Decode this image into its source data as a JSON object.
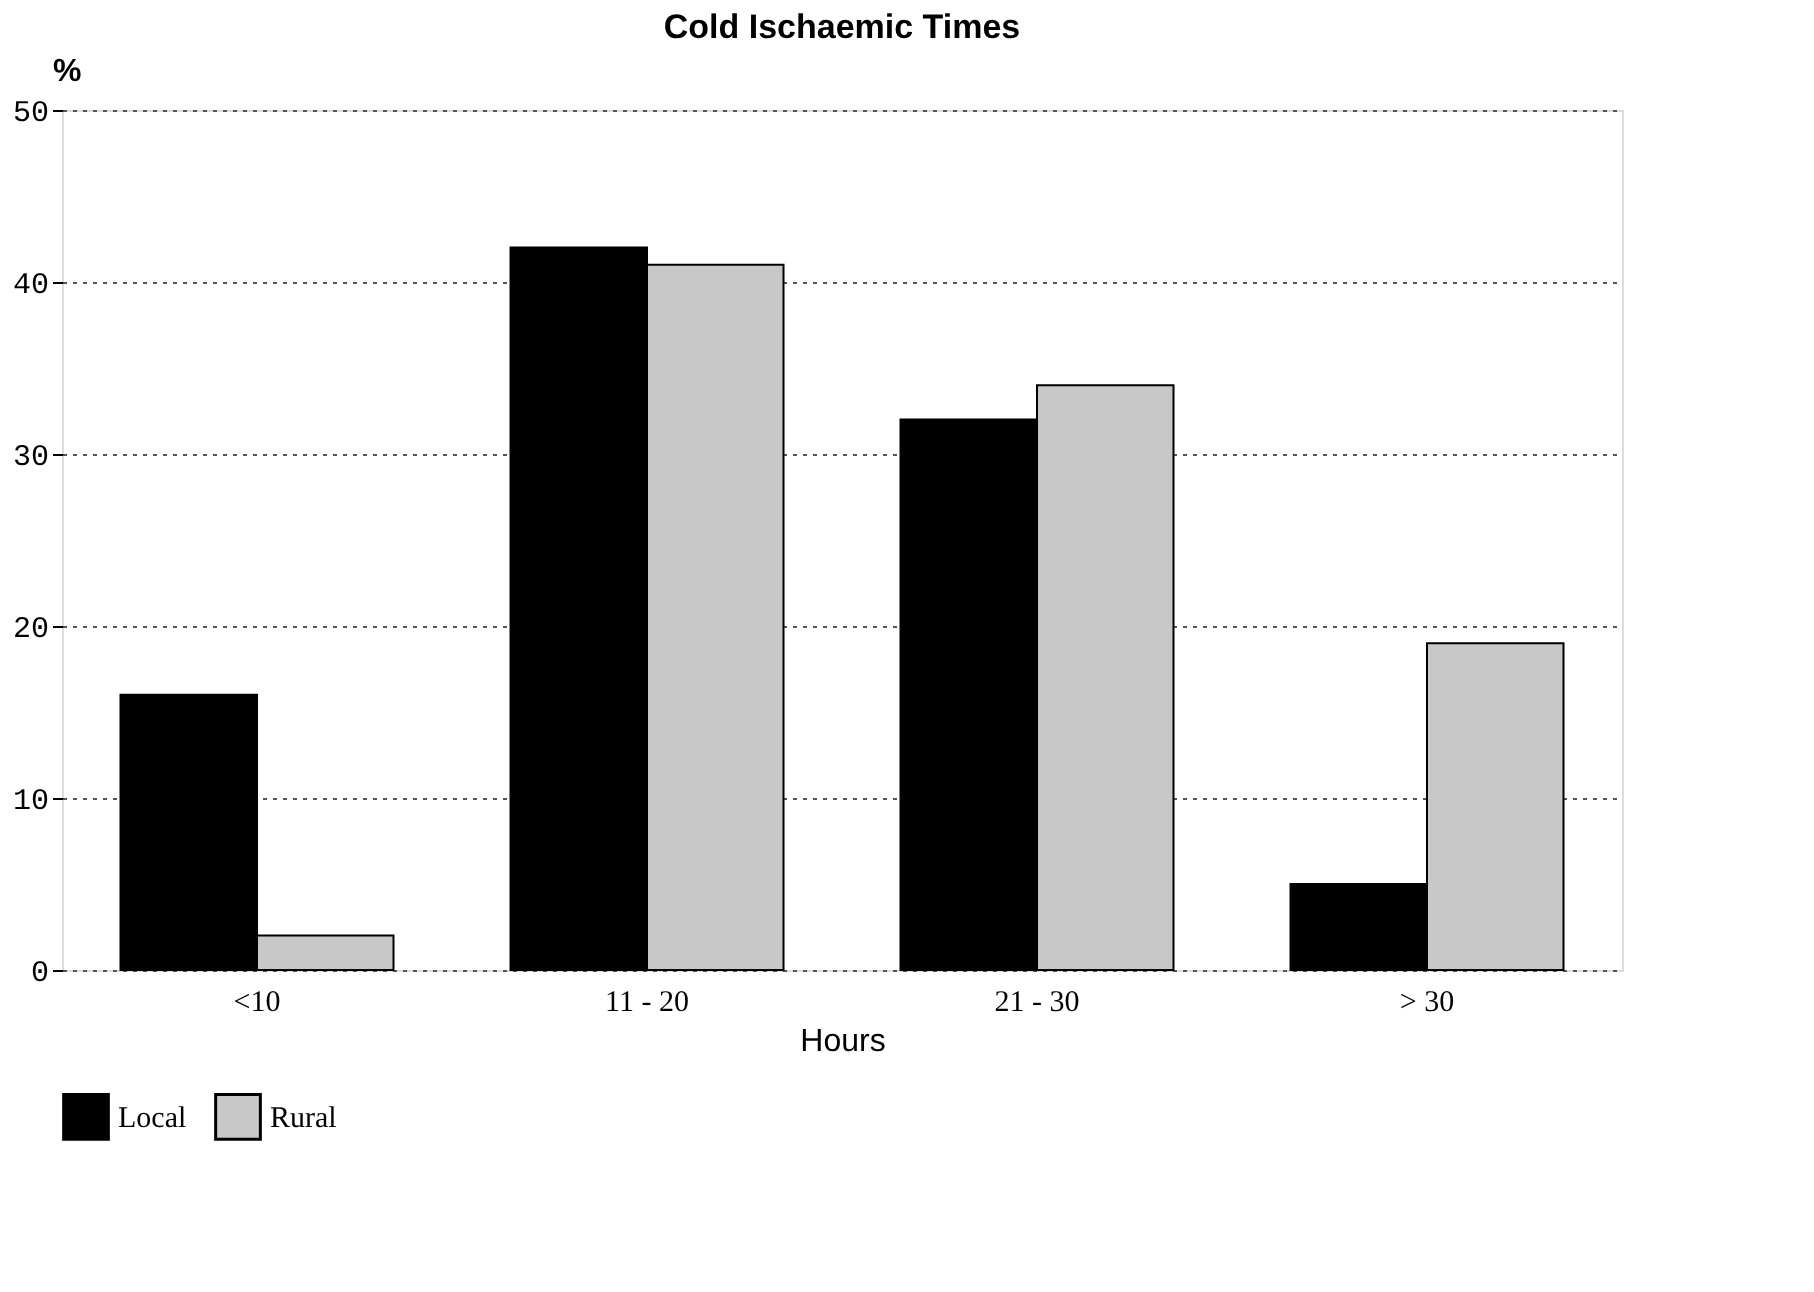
{
  "chart_data": {
    "type": "bar",
    "title": "Cold Ischaemic Times",
    "xlabel": "Hours",
    "ylabel": "%",
    "categories": [
      "<10",
      "11 - 20",
      "21 - 30",
      "> 30"
    ],
    "series": [
      {
        "name": "Local",
        "color": "#000000",
        "values": [
          16,
          42,
          32,
          5
        ]
      },
      {
        "name": "Rural",
        "color": "#c8c8c8",
        "values": [
          2,
          41,
          34,
          19
        ]
      }
    ],
    "ylim": [
      0,
      50
    ],
    "yticks": [
      0,
      10,
      20,
      30,
      40,
      50
    ],
    "grid": "y",
    "legend": "bottom"
  }
}
